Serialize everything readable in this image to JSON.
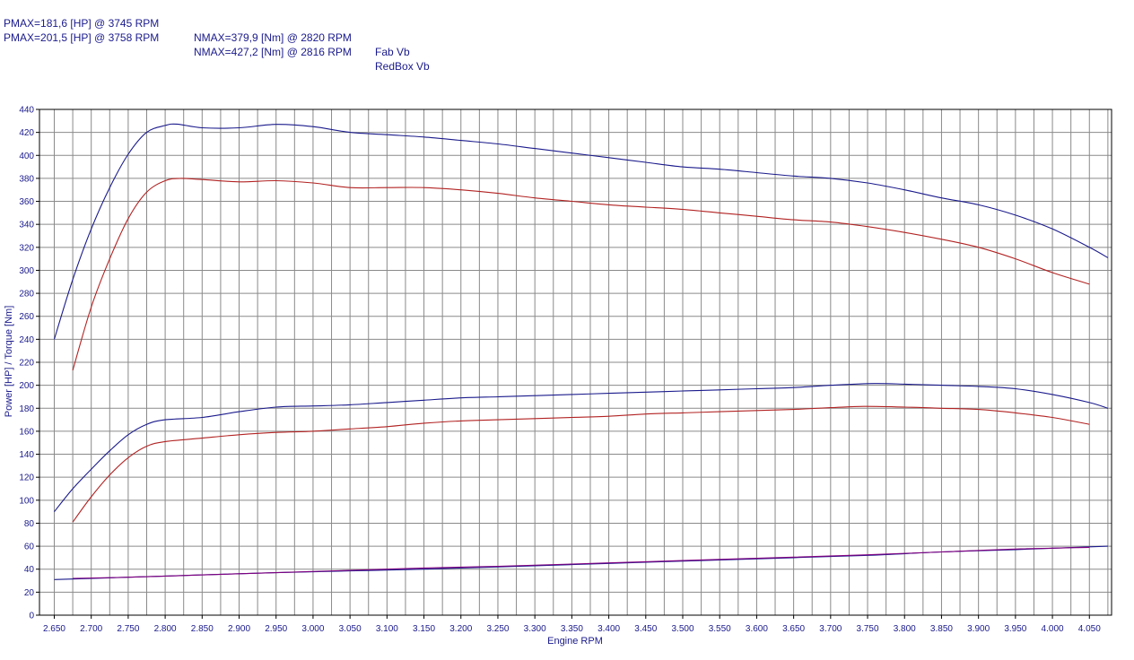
{
  "legend": {
    "rows": [
      {
        "pmax": "PMAX=181,6 [HP] @ 3745 RPM",
        "nmax": "NMAX=379,9 [Nm] @ 2820 RPM",
        "name": "Fab Vb"
      },
      {
        "pmax": "PMAX=201,5 [HP] @ 3758 RPM",
        "nmax": "NMAX=427,2 [Nm] @ 2816 RPM",
        "name": "RedBox Vb"
      }
    ]
  },
  "chart_data": {
    "type": "line",
    "xlabel": "Engine RPM",
    "ylabel": "Power [HP] / Torque [Nm]",
    "xlim": [
      2630,
      4080
    ],
    "ylim": [
      0,
      440
    ],
    "xticks": [
      "2.650",
      "2.700",
      "2.750",
      "2.800",
      "2.850",
      "2.900",
      "2.950",
      "3.000",
      "3.050",
      "3.100",
      "3.150",
      "3.200",
      "3.250",
      "3.300",
      "3.350",
      "3.400",
      "3.450",
      "3.500",
      "3.550",
      "3.600",
      "3.650",
      "3.700",
      "3.750",
      "3.800",
      "3.850",
      "3.900",
      "3.950",
      "4.000",
      "4.050"
    ],
    "xtick_values": [
      2650,
      2700,
      2750,
      2800,
      2850,
      2900,
      2950,
      3000,
      3050,
      3100,
      3150,
      3200,
      3250,
      3300,
      3350,
      3400,
      3450,
      3500,
      3550,
      3600,
      3650,
      3700,
      3750,
      3800,
      3850,
      3900,
      3950,
      4000,
      4050
    ],
    "yticks": [
      0,
      20,
      40,
      60,
      80,
      100,
      120,
      140,
      160,
      180,
      200,
      220,
      240,
      260,
      280,
      300,
      320,
      340,
      360,
      380,
      400,
      420,
      440
    ],
    "grid": true,
    "colors": {
      "fab": "#b22222",
      "redbox": "#1a1a8c",
      "loss": "#800080"
    },
    "series": [
      {
        "key": "fab_torque",
        "color": "#b22222",
        "x": [
          2675,
          2700,
          2725,
          2750,
          2775,
          2800,
          2820,
          2850,
          2900,
          2950,
          3000,
          3050,
          3100,
          3150,
          3200,
          3250,
          3300,
          3350,
          3400,
          3450,
          3500,
          3550,
          3600,
          3650,
          3700,
          3750,
          3800,
          3850,
          3900,
          3950,
          4000,
          4050
        ],
        "y": [
          213,
          268,
          310,
          345,
          368,
          378,
          379.9,
          379,
          377,
          378,
          376,
          372,
          372,
          372,
          370,
          367,
          363,
          360,
          357,
          355,
          353,
          350,
          347,
          344,
          342,
          338,
          333,
          327,
          320,
          310,
          298,
          288
        ]
      },
      {
        "key": "redbox_torque",
        "color": "#1a1a8c",
        "x": [
          2650,
          2675,
          2700,
          2725,
          2750,
          2775,
          2800,
          2816,
          2850,
          2900,
          2950,
          3000,
          3050,
          3100,
          3150,
          3200,
          3250,
          3300,
          3350,
          3400,
          3450,
          3500,
          3550,
          3600,
          3650,
          3700,
          3750,
          3800,
          3850,
          3900,
          3950,
          4000,
          4050,
          4075
        ],
        "y": [
          240,
          292,
          336,
          372,
          401,
          420,
          426,
          427.2,
          424,
          424,
          427,
          425,
          420,
          418,
          416,
          413,
          410,
          406,
          402,
          398,
          394,
          390,
          388,
          385,
          382,
          380,
          376,
          370,
          363,
          357,
          348,
          336,
          320,
          311
        ]
      },
      {
        "key": "fab_power",
        "color": "#b22222",
        "x": [
          2675,
          2700,
          2725,
          2750,
          2775,
          2800,
          2850,
          2900,
          2950,
          3000,
          3050,
          3100,
          3150,
          3200,
          3250,
          3300,
          3350,
          3400,
          3450,
          3500,
          3550,
          3600,
          3650,
          3700,
          3745,
          3800,
          3850,
          3900,
          3950,
          4000,
          4050
        ],
        "y": [
          81,
          103,
          122,
          137,
          147,
          151,
          154,
          157,
          159,
          160,
          162,
          164,
          167,
          169,
          170,
          171,
          172,
          173,
          175,
          176,
          177,
          178,
          179,
          180.5,
          181.6,
          181,
          180,
          179,
          176,
          172,
          166
        ]
      },
      {
        "key": "redbox_power",
        "color": "#1a1a8c",
        "x": [
          2650,
          2675,
          2700,
          2725,
          2750,
          2775,
          2800,
          2850,
          2900,
          2950,
          3000,
          3050,
          3100,
          3150,
          3200,
          3250,
          3300,
          3350,
          3400,
          3450,
          3500,
          3550,
          3600,
          3650,
          3700,
          3758,
          3800,
          3850,
          3900,
          3950,
          4000,
          4050,
          4075
        ],
        "y": [
          90,
          110,
          127,
          143,
          157,
          166,
          170,
          172,
          177,
          181,
          182,
          183,
          185,
          187,
          189,
          190,
          191,
          192,
          193,
          194,
          195,
          196,
          197,
          198,
          200,
          201.5,
          201,
          200,
          199,
          197,
          192,
          185,
          180
        ]
      },
      {
        "key": "loss_redbox",
        "color": "#1a1a8c",
        "x": [
          2650,
          2750,
          2850,
          2950,
          3050,
          3150,
          3250,
          3350,
          3450,
          3550,
          3650,
          3750,
          3850,
          3950,
          4075
        ],
        "y": [
          31,
          33,
          35,
          37,
          38.5,
          40,
          42,
          44,
          46,
          48,
          50,
          52,
          55,
          57,
          60
        ]
      },
      {
        "key": "loss_fab",
        "color": "#800080",
        "x": [
          2675,
          2750,
          2850,
          2950,
          3050,
          3150,
          3250,
          3350,
          3450,
          3550,
          3650,
          3750,
          3850,
          3950,
          4050
        ],
        "y": [
          32,
          33,
          35,
          37,
          39,
          41,
          42.5,
          44.5,
          46.5,
          48.5,
          50.5,
          52.5,
          55,
          57.5,
          59
        ]
      }
    ]
  }
}
